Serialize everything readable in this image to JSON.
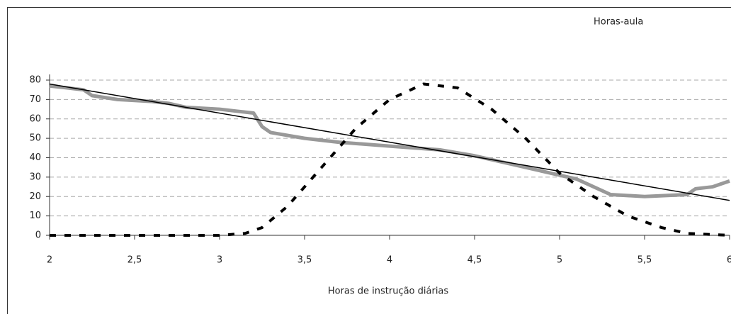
{
  "chart_data": {
    "type": "line",
    "xlabel": "Horas de instrução diárias",
    "xlim": [
      2,
      6
    ],
    "ylim": [
      0,
      80
    ],
    "xticks": [
      2,
      {
        "value": 2.5,
        "label": "2,5"
      },
      3,
      {
        "value": 3.5,
        "label": "3,5"
      },
      4,
      {
        "value": 4.5,
        "label": "4,5"
      },
      5,
      {
        "value": 5.5,
        "label": "5,5"
      },
      6
    ],
    "yticks": [
      0,
      10,
      20,
      30,
      40,
      50,
      60,
      70,
      80
    ],
    "grid": true,
    "series": [
      {
        "name": "Horas-aula",
        "color": "#999999",
        "x": [
          2,
          2.1,
          2.2,
          2.25,
          2.4,
          2.6,
          2.7,
          2.8,
          3.0,
          3.1,
          3.2,
          3.25,
          3.3,
          3.5,
          3.7,
          4.0,
          4.3,
          4.5,
          4.7,
          4.9,
          5.1,
          5.25,
          5.3,
          5.5,
          5.75,
          5.8,
          5.9,
          6
        ],
        "values": [
          77,
          76,
          75,
          72,
          70,
          69,
          68,
          66,
          65,
          64,
          63,
          56,
          53,
          50,
          48,
          46,
          44,
          41,
          37,
          33,
          29,
          23,
          21,
          20,
          21,
          24,
          25,
          28
        ]
      },
      {
        "color": "#000000",
        "x": [
          2,
          6
        ],
        "values": [
          78,
          18
        ]
      },
      {
        "color": "#000000",
        "x": [
          2,
          2.5,
          3,
          3.15,
          3.25,
          3.4,
          3.6,
          3.8,
          4.0,
          4.2,
          4.4,
          4.6,
          4.8,
          5.0,
          5.2,
          5.4,
          5.6,
          5.75,
          6
        ],
        "values": [
          0,
          0,
          0,
          1,
          4,
          15,
          35,
          55,
          70,
          78,
          76,
          65,
          50,
          32,
          20,
          10,
          4,
          1,
          0
        ]
      }
    ]
  }
}
